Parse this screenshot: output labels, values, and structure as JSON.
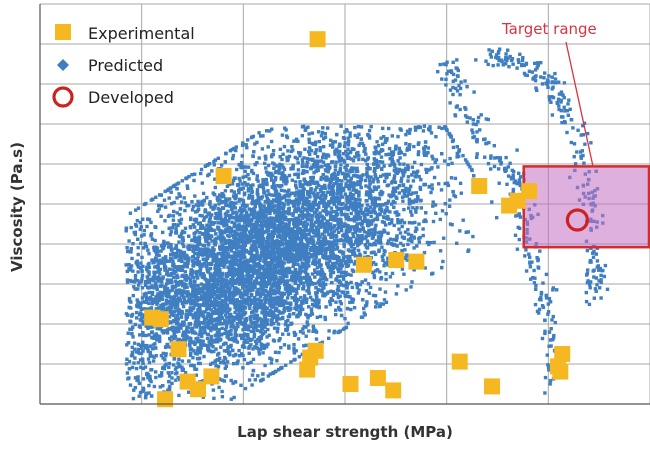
{
  "chart_data": {
    "type": "scatter",
    "xlabel": "Lap shear strength (MPa)",
    "ylabel": "Viscosity (Pa.s)",
    "xlim": [
      0,
      100
    ],
    "ylim": [
      0,
      100
    ],
    "grid": true,
    "legend_position": "top-left",
    "legend": [
      {
        "key": "experimental",
        "label": "Experimental",
        "marker": "square",
        "color": "#f5b820"
      },
      {
        "key": "predicted",
        "label": "Predicted",
        "marker": "diamond",
        "color": "#3f7fc1"
      },
      {
        "key": "developed",
        "label": "Developed",
        "marker": "circle-outline",
        "color": "#cc2222"
      }
    ],
    "series": [
      {
        "name": "Experimental",
        "points": [
          [
            45.5,
            91.2
          ],
          [
            30.1,
            57.0
          ],
          [
            72.0,
            54.5
          ],
          [
            80.2,
            53.2
          ],
          [
            53.1,
            34.8
          ],
          [
            58.4,
            36.0
          ],
          [
            61.7,
            35.6
          ],
          [
            18.4,
            21.6
          ],
          [
            19.8,
            21.2
          ],
          [
            22.7,
            13.7
          ],
          [
            24.2,
            5.6
          ],
          [
            25.9,
            3.7
          ],
          [
            28.1,
            6.9
          ],
          [
            20.5,
            1.2
          ],
          [
            45.2,
            13.3
          ],
          [
            44.3,
            11.6
          ],
          [
            43.8,
            8.6
          ],
          [
            50.9,
            5.0
          ],
          [
            55.4,
            6.5
          ],
          [
            57.9,
            3.4
          ],
          [
            68.8,
            10.6
          ],
          [
            74.1,
            4.4
          ],
          [
            85.6,
            12.5
          ],
          [
            84.9,
            9.4
          ],
          [
            85.3,
            8.1
          ],
          [
            76.9,
            49.6
          ],
          [
            78.3,
            50.8
          ]
        ]
      },
      {
        "name": "Predicted",
        "description": "dense cluster of predicted formulations centered near (35, 35) plus a right-hand arc from about x 66-91 spanning y 5-89"
      },
      {
        "name": "Developed",
        "points": [
          [
            88.1,
            46.0
          ]
        ]
      }
    ],
    "annotations": [
      {
        "text": "Target range",
        "color": "#d9343f",
        "x_range": [
          79.3,
          100
        ],
        "y_range": [
          39.2,
          59.4
        ]
      }
    ]
  }
}
